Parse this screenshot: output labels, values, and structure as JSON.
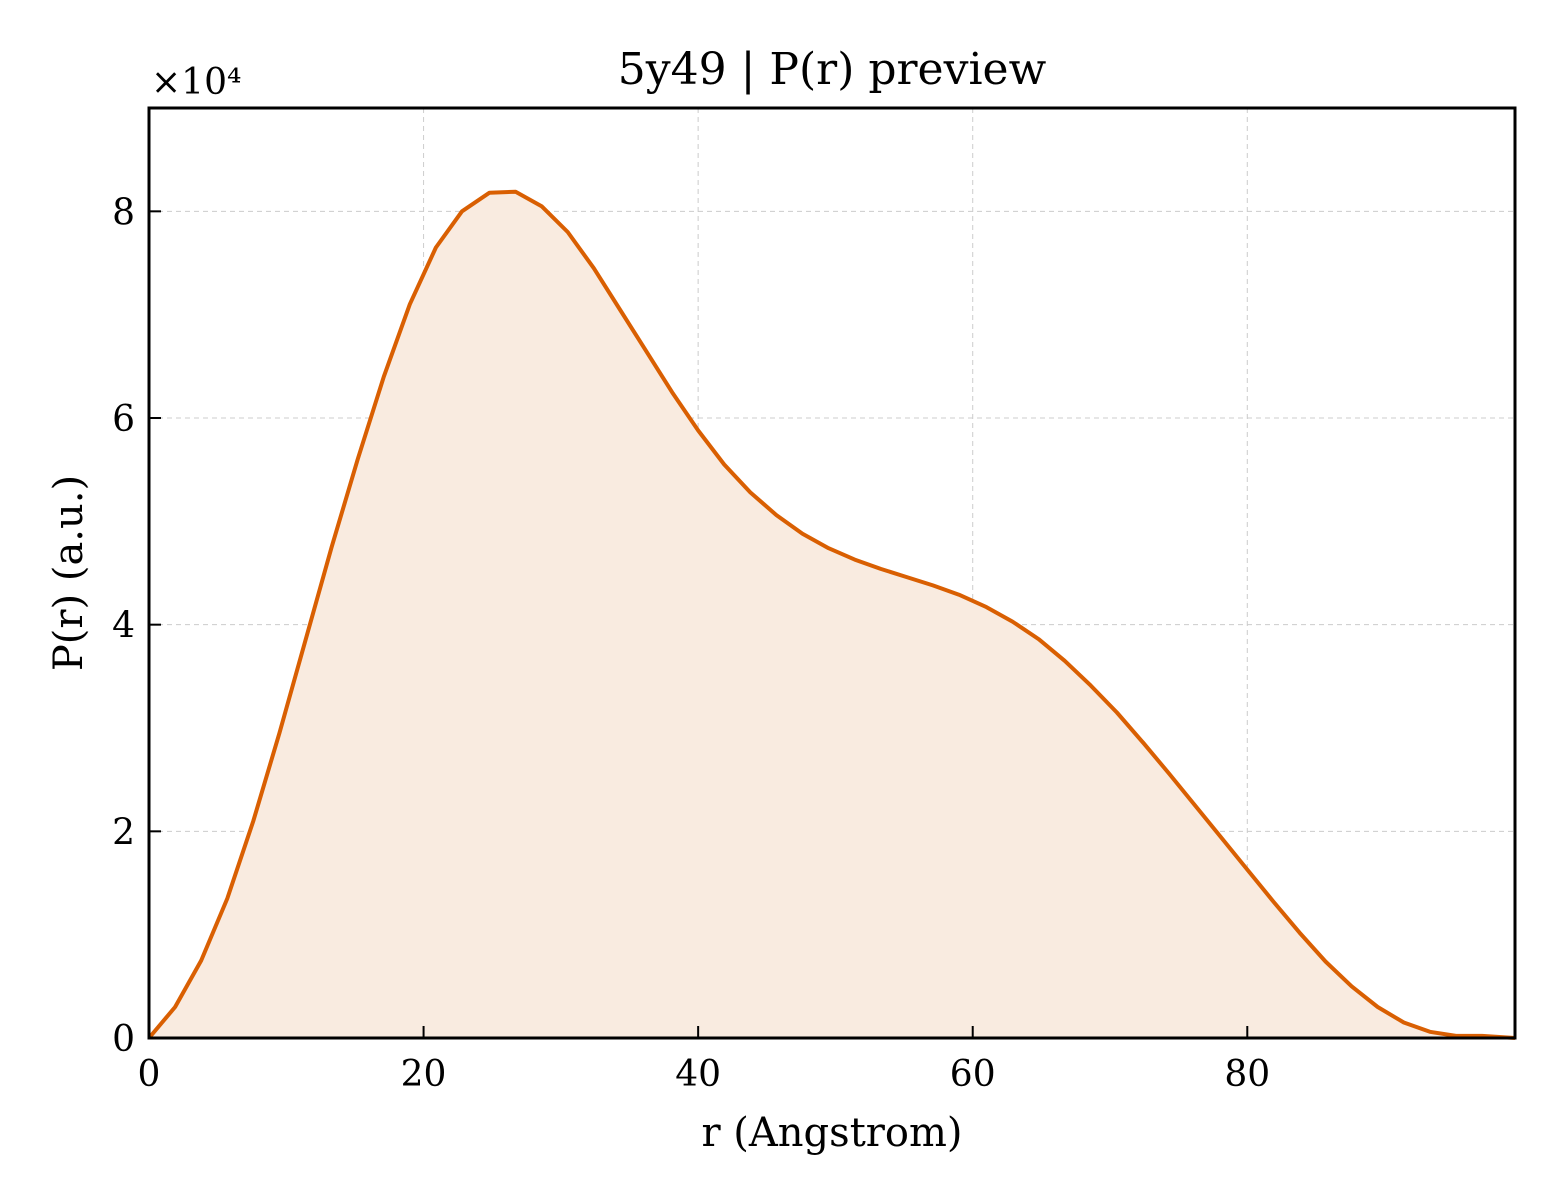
{
  "chart_data": {
    "type": "area",
    "title": "5y49 | P(r) preview",
    "xlabel": "r (Angstrom)",
    "ylabel": "P(r) (a.u.)",
    "y_multiplier_label": "×10⁴",
    "xlim": [
      0,
      99.5
    ],
    "ylim": [
      0,
      9.0
    ],
    "x_ticks": [
      0,
      20,
      40,
      60,
      80
    ],
    "y_ticks": [
      0,
      2,
      4,
      6,
      8
    ],
    "grid": true,
    "line_color": "#d95f02",
    "fill_color": "#f9ebe0",
    "series": [
      {
        "x": [
          0,
          1.9,
          3.8,
          5.7,
          7.6,
          9.5,
          11.4,
          13.3,
          15.2,
          17.1,
          19.0,
          20.9,
          22.8,
          24.8,
          26.7,
          28.6,
          30.5,
          32.4,
          34.3,
          36.2,
          38.1,
          40.0,
          41.9,
          43.8,
          45.7,
          47.6,
          49.5,
          51.4,
          53.3,
          55.2,
          57.1,
          59.0,
          61.0,
          62.9,
          64.8,
          66.7,
          68.6,
          70.5,
          72.4,
          74.3,
          76.2,
          78.1,
          80.0,
          81.9,
          83.8,
          85.7,
          87.6,
          89.5,
          91.4,
          93.3,
          95.2,
          97.1,
          99.5
        ],
        "y": [
          0.0,
          0.3,
          0.75,
          1.35,
          2.1,
          2.95,
          3.85,
          4.75,
          5.6,
          6.4,
          7.1,
          7.65,
          8.0,
          8.18,
          8.19,
          8.05,
          7.8,
          7.45,
          7.05,
          6.65,
          6.25,
          5.88,
          5.55,
          5.28,
          5.06,
          4.88,
          4.74,
          4.63,
          4.54,
          4.46,
          4.38,
          4.29,
          4.17,
          4.03,
          3.86,
          3.65,
          3.41,
          3.15,
          2.86,
          2.56,
          2.25,
          1.94,
          1.63,
          1.32,
          1.02,
          0.74,
          0.5,
          0.3,
          0.15,
          0.06,
          0.02,
          0.02,
          0.0
        ]
      }
    ]
  }
}
